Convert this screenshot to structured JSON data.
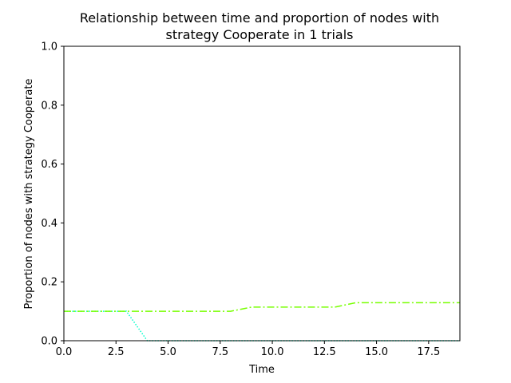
{
  "chart_data": {
    "type": "line",
    "title_lines": [
      "Relationship between time and proportion of nodes with",
      "strategy Cooperate in 1 trials"
    ],
    "xlabel": "Time",
    "ylabel": "Proportion of nodes with strategy Cooperate",
    "xlim": [
      0,
      19
    ],
    "ylim": [
      0,
      1.0
    ],
    "xticks": [
      0,
      2.5,
      5,
      7.5,
      10,
      12.5,
      15,
      17.5
    ],
    "xtick_labels": [
      "0.0",
      "2.5",
      "5.0",
      "7.5",
      "10.0",
      "12.5",
      "15.0",
      "17.5"
    ],
    "yticks": [
      0,
      0.2,
      0.4,
      0.6,
      0.8,
      1.0
    ],
    "ytick_labels": [
      "0.0",
      "0.2",
      "0.4",
      "0.6",
      "0.8",
      "1.0"
    ],
    "grid": false,
    "series": [
      {
        "color": "#00ffcc",
        "style": "dotted",
        "x": [
          0,
          1,
          2,
          3,
          4,
          5,
          6,
          7,
          8,
          9,
          10,
          11,
          12,
          13,
          14,
          15,
          16,
          17,
          18,
          19
        ],
        "y": [
          0.1,
          0.1,
          0.1,
          0.1,
          0.0,
          0.0,
          0.0,
          0.0,
          0.0,
          0.0,
          0.0,
          0.0,
          0.0,
          0.0,
          0.0,
          0.0,
          0.0,
          0.0,
          0.0,
          0.0
        ]
      },
      {
        "color": "#77ff00",
        "style": "dashdot",
        "x": [
          0,
          1,
          2,
          3,
          4,
          5,
          6,
          7,
          8,
          9,
          10,
          11,
          12,
          13,
          14,
          15,
          16,
          17,
          18,
          19
        ],
        "y": [
          0.1,
          0.1,
          0.1,
          0.1,
          0.1,
          0.1,
          0.1,
          0.1,
          0.1,
          0.114,
          0.114,
          0.114,
          0.114,
          0.114,
          0.129,
          0.129,
          0.129,
          0.129,
          0.129,
          0.129
        ]
      }
    ]
  }
}
